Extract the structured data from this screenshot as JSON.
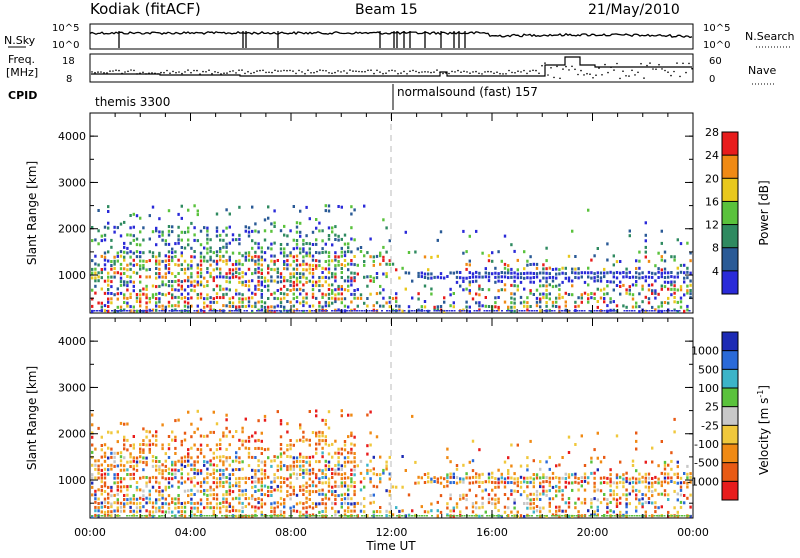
{
  "header": {
    "station": "Kodiak (fitACF)",
    "beam": "Beam 15",
    "date": "21/May/2010"
  },
  "top_strip": {
    "left_label": "N.Sky",
    "right_label": "N.Search",
    "left_ticks": [
      "10^5",
      "10^0"
    ],
    "right_ticks": [
      "10^5",
      "10^0"
    ]
  },
  "freq_strip": {
    "left_label_line1": "Freq.",
    "left_label_line2": "[MHz]",
    "right_label": "Nave",
    "left_ticks": [
      "18",
      "8"
    ],
    "right_ticks": [
      "60",
      "0"
    ]
  },
  "cpid": {
    "label": "CPID",
    "mode1": "themis 3300",
    "mode2": "normalsound (fast) 157"
  },
  "chart_data": [
    {
      "type": "heatmap",
      "name": "power",
      "ylabel": "Slant Range [km]",
      "ylim": [
        180,
        4500
      ],
      "yticks": [
        "1000",
        "2000",
        "3000",
        "4000"
      ],
      "xticks": [
        "00:00",
        "04:00",
        "08:00",
        "12:00",
        "16:00",
        "20:00",
        "00:00"
      ],
      "colorbar_label": "Power [dB]",
      "colorbar_ticks": [
        "4",
        "8",
        "12",
        "16",
        "20",
        "24",
        "28"
      ],
      "colors": [
        "#2a2ad8",
        "#2a5a96",
        "#2f8a60",
        "#5ac23c",
        "#e8c81c",
        "#f08a14",
        "#e81c1c"
      ]
    },
    {
      "type": "heatmap",
      "name": "velocity",
      "ylabel": "Slant Range [km]",
      "ylim": [
        180,
        4500
      ],
      "yticks": [
        "1000",
        "2000",
        "3000",
        "4000"
      ],
      "xticks": [
        "00:00",
        "04:00",
        "08:00",
        "12:00",
        "16:00",
        "20:00",
        "00:00"
      ],
      "xlabel": "Time UT",
      "colorbar_label": "Velocity [m s",
      "colorbar_label_sup": "-1",
      "colorbar_label_end": "]",
      "colorbar_ticks": [
        "1000",
        "500",
        "100",
        "25",
        "-25",
        "-100",
        "-500",
        "-1000"
      ],
      "colors": [
        "#1c2ab4",
        "#2a6ad8",
        "#3cb4c8",
        "#5ac23c",
        "#c8c8c8",
        "#f0c83c",
        "#f08a14",
        "#e85a14",
        "#e81c1c"
      ]
    }
  ]
}
